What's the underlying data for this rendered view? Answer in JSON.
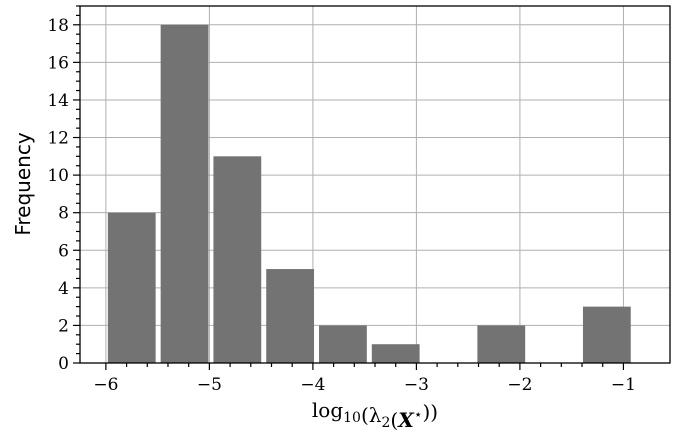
{
  "chart_data": {
    "type": "bar",
    "title": "",
    "xlabel": "log10(λ2(X⋆))",
    "ylabel": "Frequency",
    "xlim": [
      -6.25,
      -0.55
    ],
    "ylim": [
      0,
      19
    ],
    "grid": true,
    "bar_color": "#737373",
    "bin_width": 0.51,
    "bars": [
      {
        "x": -5.75,
        "value": 8
      },
      {
        "x": -5.24,
        "value": 18
      },
      {
        "x": -4.73,
        "value": 11
      },
      {
        "x": -4.22,
        "value": 5
      },
      {
        "x": -3.71,
        "value": 2
      },
      {
        "x": -3.2,
        "value": 1
      },
      {
        "x": -2.18,
        "value": 2
      },
      {
        "x": -1.16,
        "value": 3
      }
    ],
    "x_ticks": [
      -6,
      -5,
      -4,
      -3,
      -2,
      -1
    ],
    "x_tick_labels": [
      "−6",
      "−5",
      "−4",
      "−3",
      "−2",
      "−1"
    ],
    "y_ticks": [
      0,
      2,
      4,
      6,
      8,
      10,
      12,
      14,
      16,
      18
    ],
    "y_tick_labels": [
      "0",
      "2",
      "4",
      "6",
      "8",
      "10",
      "12",
      "14",
      "16",
      "18"
    ]
  }
}
